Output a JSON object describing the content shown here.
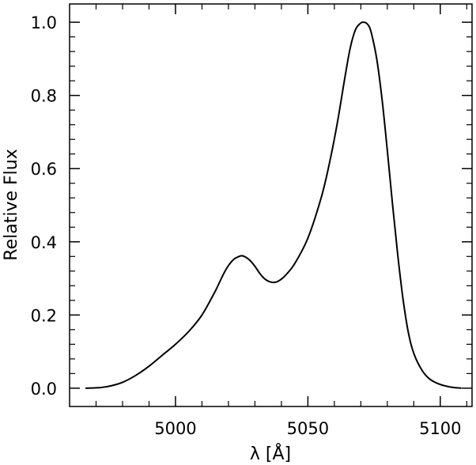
{
  "chart_data": {
    "type": "line",
    "title": "",
    "xlabel": "λ [Å]",
    "ylabel": "Relative Flux",
    "xlim": [
      4960,
      5112
    ],
    "ylim": [
      -0.05,
      1.05
    ],
    "grid": false,
    "legend": "none",
    "x_ticks": [
      {
        "value": 5000,
        "label": "5000"
      },
      {
        "value": 5050,
        "label": "5050"
      },
      {
        "value": 5100,
        "label": "5100"
      }
    ],
    "y_ticks": [
      {
        "value": 0.0,
        "label": "0.0"
      },
      {
        "value": 0.2,
        "label": "0.2"
      },
      {
        "value": 0.4,
        "label": "0.4"
      },
      {
        "value": 0.6,
        "label": "0.6"
      },
      {
        "value": 0.8,
        "label": "0.8"
      },
      {
        "value": 1.0,
        "label": "1.0"
      }
    ],
    "series": [
      {
        "color": "#000000",
        "x": [
          4966,
          4972,
          4976,
          4980,
          4985,
          4990,
          4995,
          5000,
          5005,
          5010,
          5015,
          5018,
          5020,
          5022,
          5024,
          5025,
          5026,
          5028,
          5030,
          5032,
          5034,
          5036,
          5038,
          5040,
          5042,
          5045,
          5050,
          5055,
          5058,
          5061,
          5064,
          5066,
          5068,
          5070,
          5071,
          5072,
          5073,
          5074,
          5076,
          5078,
          5080,
          5082,
          5084,
          5086,
          5088,
          5090,
          5093,
          5096,
          5100,
          5104,
          5108
        ],
        "y": [
          0.0,
          0.002,
          0.007,
          0.016,
          0.035,
          0.06,
          0.09,
          0.12,
          0.155,
          0.2,
          0.265,
          0.31,
          0.335,
          0.352,
          0.36,
          0.362,
          0.36,
          0.35,
          0.333,
          0.312,
          0.297,
          0.29,
          0.29,
          0.298,
          0.312,
          0.34,
          0.41,
          0.52,
          0.61,
          0.72,
          0.85,
          0.93,
          0.98,
          0.998,
          1.0,
          0.998,
          0.99,
          0.97,
          0.9,
          0.79,
          0.65,
          0.5,
          0.36,
          0.24,
          0.15,
          0.095,
          0.05,
          0.025,
          0.01,
          0.003,
          0.0
        ]
      }
    ]
  }
}
